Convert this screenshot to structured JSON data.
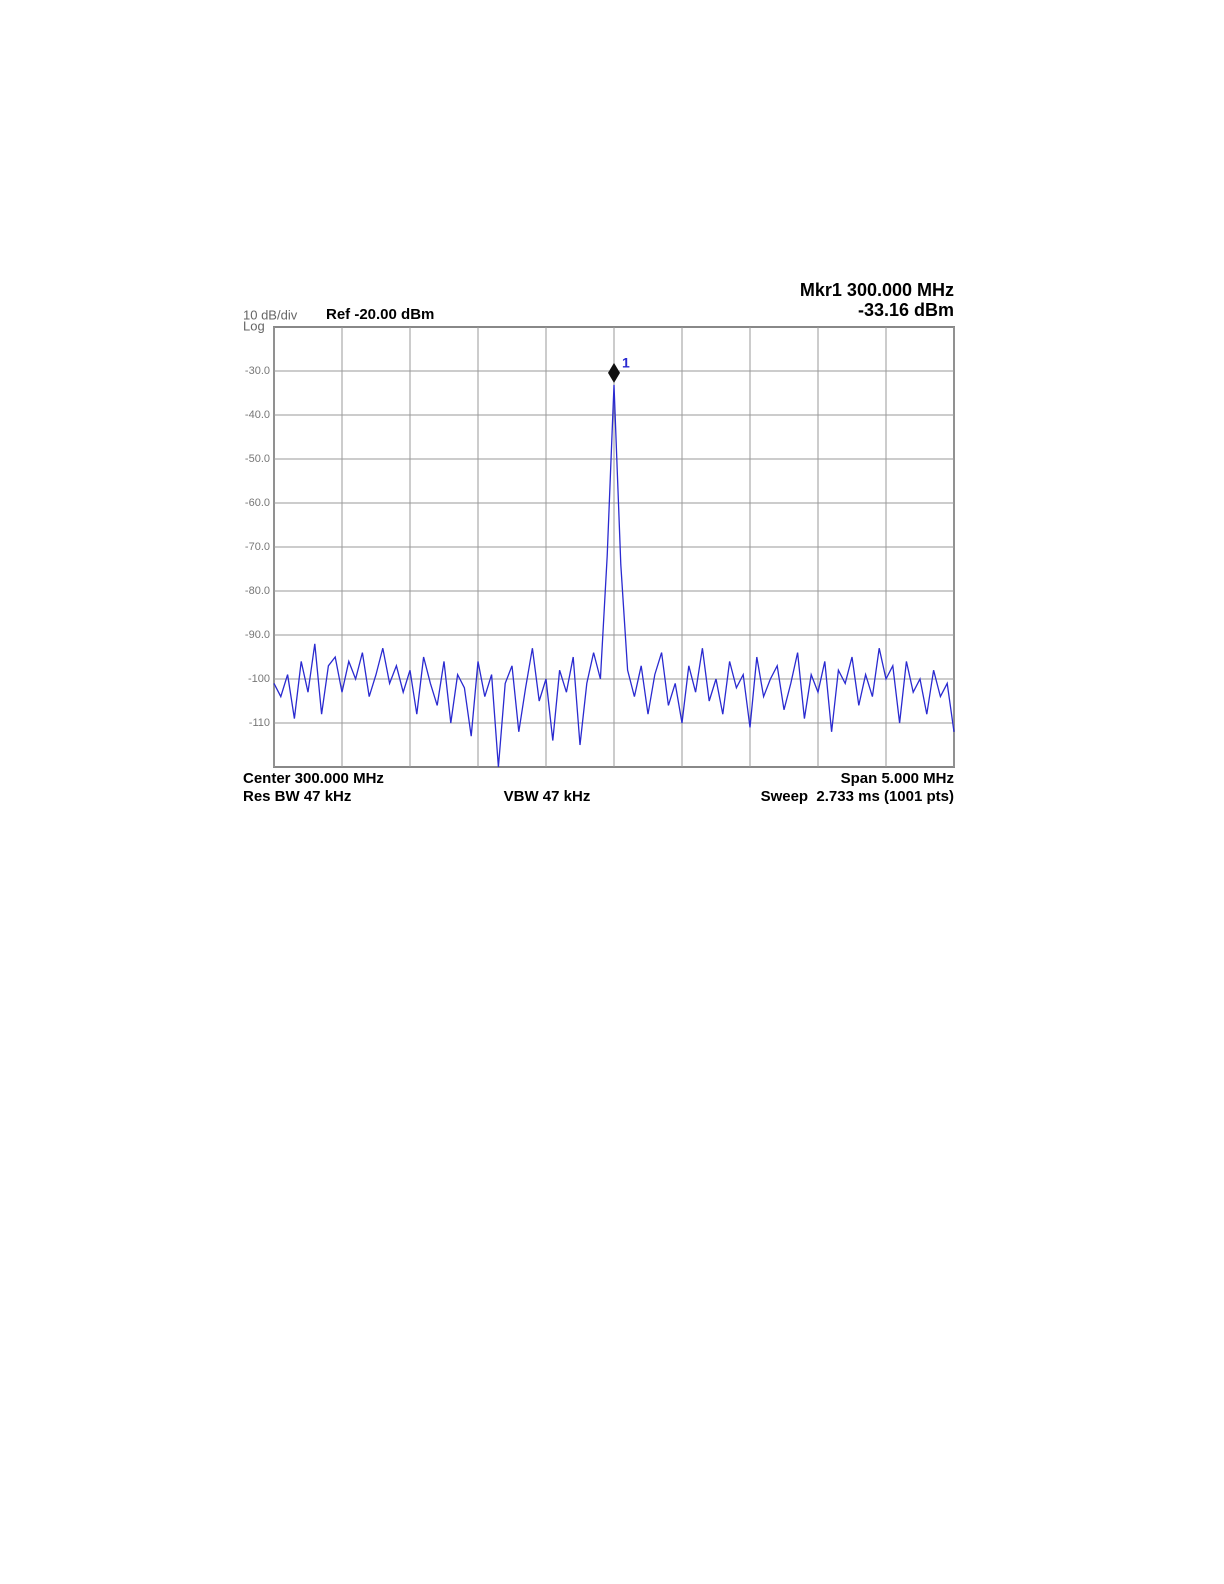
{
  "chart_data": {
    "type": "line",
    "scale_label": "10 dB/div",
    "scale_type": "Log",
    "ref_label": "Ref -20.00 dBm",
    "center_label": "Center 300.000 MHz",
    "span_label": "Span 5.000 MHz",
    "rbw_label": "Res BW 47 kHz",
    "vbw_label": "VBW 47 kHz",
    "sweep_label": "Sweep  2.733 ms (1001 pts)",
    "xlim": [
      297.5,
      302.5
    ],
    "xticks": [
      297.5,
      298,
      298.5,
      299,
      299.5,
      300,
      300.5,
      301,
      301.5,
      302,
      302.5
    ],
    "ylim": [
      -120,
      -20
    ],
    "yticks": [
      {
        "value": -30,
        "label": "-30.0"
      },
      {
        "value": -40,
        "label": "-40.0"
      },
      {
        "value": -50,
        "label": "-50.0"
      },
      {
        "value": -60,
        "label": "-60.0"
      },
      {
        "value": -70,
        "label": "-70.0"
      },
      {
        "value": -80,
        "label": "-80.0"
      },
      {
        "value": -90,
        "label": "-90.0"
      },
      -100,
      -110
    ],
    "grid": true,
    "x": [
      297.5,
      297.55,
      297.6,
      297.65,
      297.7,
      297.75,
      297.8,
      297.85,
      297.9,
      297.95,
      298,
      298.05,
      298.1,
      298.15,
      298.2,
      298.25,
      298.3,
      298.35,
      298.4,
      298.45,
      298.5,
      298.55,
      298.6,
      298.65,
      298.7,
      298.75,
      298.8,
      298.85,
      298.9,
      298.95,
      299,
      299.05,
      299.1,
      299.15,
      299.2,
      299.25,
      299.3,
      299.35,
      299.4,
      299.45,
      299.5,
      299.55,
      299.6,
      299.65,
      299.7,
      299.75,
      299.8,
      299.85,
      299.9,
      299.95,
      300,
      300.05,
      300.1,
      300.15,
      300.2,
      300.25,
      300.3,
      300.35,
      300.4,
      300.45,
      300.5,
      300.55,
      300.6,
      300.65,
      300.7,
      300.75,
      300.8,
      300.85,
      300.9,
      300.95,
      301,
      301.05,
      301.1,
      301.15,
      301.2,
      301.25,
      301.3,
      301.35,
      301.4,
      301.45,
      301.5,
      301.55,
      301.6,
      301.65,
      301.7,
      301.75,
      301.8,
      301.85,
      301.9,
      301.95,
      302,
      302.05,
      302.1,
      302.15,
      302.2,
      302.25,
      302.3,
      302.35,
      302.4,
      302.45,
      302.5
    ],
    "series": [
      {
        "color": "#2a2ad0",
        "values": [
          -101,
          -104,
          -99,
          -109,
          -96,
          -103,
          -92,
          -108,
          -97,
          -95,
          -103,
          -96,
          -100,
          -94,
          -104,
          -99,
          -93,
          -101,
          -97,
          -103,
          -98,
          -108,
          -95,
          -101,
          -106,
          -96,
          -110,
          -99,
          -102,
          -113,
          -96,
          -104,
          -99,
          -120,
          -101,
          -97,
          -112,
          -102,
          -93,
          -105,
          -100,
          -114,
          -98,
          -103,
          -95,
          -115,
          -101,
          -94,
          -100,
          -72,
          -33.16,
          -74,
          -98,
          -104,
          -97,
          -108,
          -99,
          -94,
          -106,
          -101,
          -110,
          -97,
          -103,
          -93,
          -105,
          -100,
          -108,
          -96,
          -102,
          -99,
          -111,
          -95,
          -104,
          -100,
          -97,
          -107,
          -101,
          -94,
          -109,
          -99,
          -103,
          -96,
          -112,
          -98,
          -101,
          -95,
          -106,
          -99,
          -104,
          -93,
          -100,
          -97,
          -110,
          -96,
          -103,
          -100,
          -108,
          -98,
          -104,
          -101,
          -112
        ]
      }
    ],
    "marker": {
      "label": "1",
      "x": 300,
      "y": -33.16,
      "x_label": "Mkr1 300.000 MHz",
      "y_label": "-33.16 dBm",
      "color": "#2a2ad0"
    }
  }
}
